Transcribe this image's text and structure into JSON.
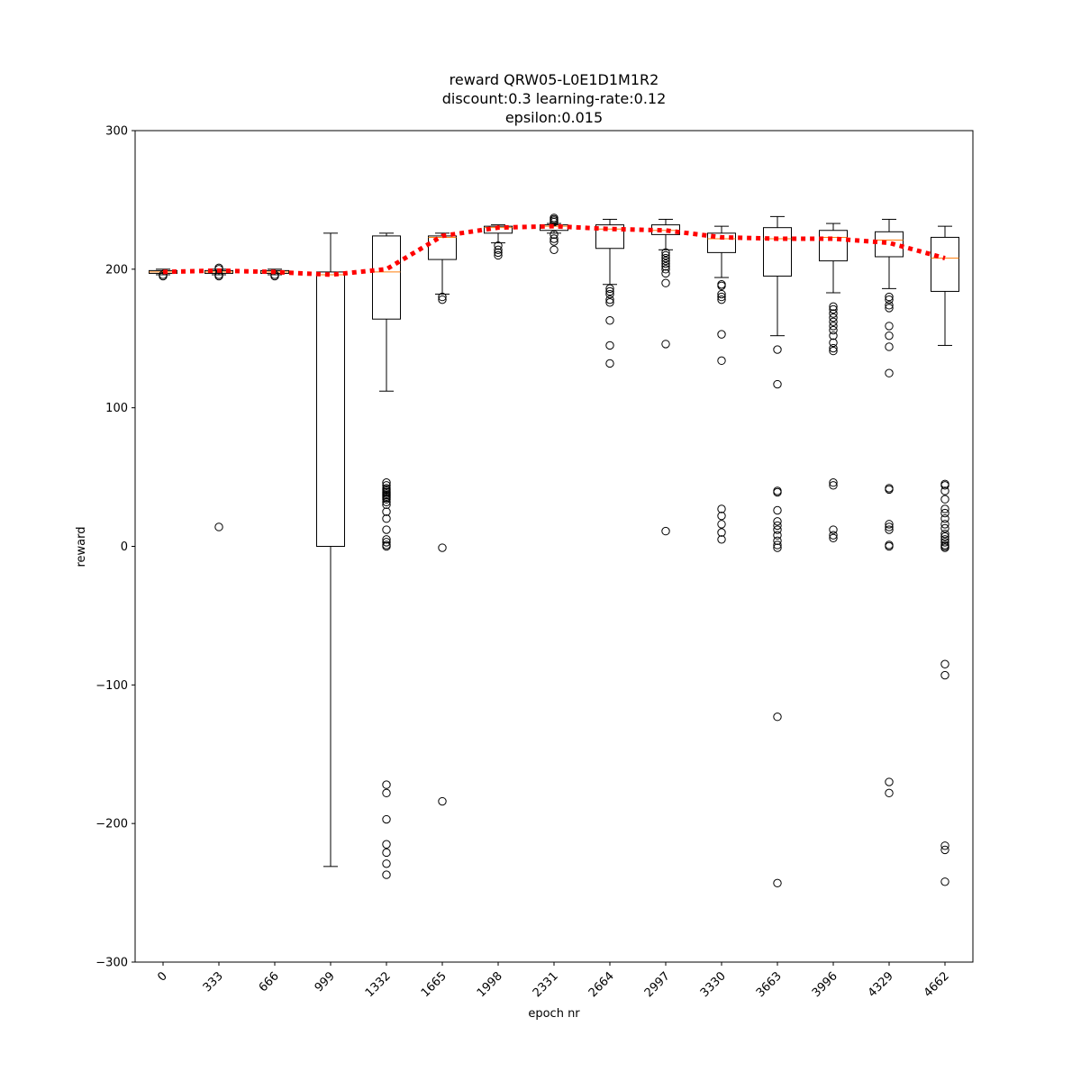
{
  "chart_data": {
    "type": "boxplot",
    "title_lines": [
      "reward QRW05-L0E1D1M1R2",
      "discount:0.3 learning-rate:0.12",
      "epsilon:0.015"
    ],
    "xlabel": "epoch nr",
    "ylabel": "reward",
    "ylim": [
      -300,
      300
    ],
    "yticks": [
      -300,
      -200,
      -100,
      0,
      100,
      200,
      300
    ],
    "ytick_labels": [
      "−300",
      "−200",
      "−100",
      "0",
      "100",
      "200",
      "300"
    ],
    "grid": false,
    "categories": [
      "0",
      "333",
      "666",
      "999",
      "1332",
      "1665",
      "1998",
      "2331",
      "2664",
      "2997",
      "3330",
      "3663",
      "3996",
      "4329",
      "4662"
    ],
    "boxes": [
      {
        "q1": 197,
        "median": 198,
        "q3": 199,
        "whislo": 196,
        "whishi": 200,
        "fliers": [
          195,
          196
        ]
      },
      {
        "q1": 197,
        "median": 198,
        "q3": 199,
        "whislo": 196,
        "whishi": 200,
        "fliers": [
          195,
          196,
          200,
          201,
          14
        ]
      },
      {
        "q1": 197,
        "median": 198,
        "q3": 199,
        "whislo": 196,
        "whishi": 200,
        "fliers": [
          195,
          196
        ]
      },
      {
        "q1": 0,
        "median": 196,
        "q3": 198,
        "whislo": -231,
        "whishi": 226,
        "fliers": []
      },
      {
        "q1": 164,
        "median": 198,
        "q3": 224,
        "whislo": 112,
        "whishi": 226,
        "fliers": [
          46,
          44,
          42,
          41,
          40,
          39,
          38,
          37,
          36,
          35,
          34,
          32,
          30,
          25,
          20,
          12,
          5,
          3,
          1,
          0,
          -172,
          -178,
          -197,
          -215,
          -221,
          -229,
          -237
        ]
      },
      {
        "q1": 207,
        "median": 223,
        "q3": 224,
        "whislo": 182,
        "whishi": 226,
        "fliers": [
          180,
          178,
          -1,
          -184
        ]
      },
      {
        "q1": 226,
        "median": 230,
        "q3": 231,
        "whislo": 219,
        "whishi": 232,
        "fliers": [
          217,
          214,
          212,
          210
        ]
      },
      {
        "q1": 228,
        "median": 231,
        "q3": 232,
        "whislo": 226,
        "whishi": 233,
        "fliers": [
          237,
          236,
          235,
          234,
          225,
          222,
          220,
          214
        ]
      },
      {
        "q1": 215,
        "median": 229,
        "q3": 232,
        "whislo": 189,
        "whishi": 236,
        "fliers": [
          186,
          184,
          182,
          178,
          176,
          163,
          145,
          132
        ]
      },
      {
        "q1": 225,
        "median": 228,
        "q3": 232,
        "whislo": 214,
        "whishi": 236,
        "fliers": [
          212,
          210,
          208,
          206,
          204,
          202,
          200,
          197,
          190,
          146,
          11
        ]
      },
      {
        "q1": 212,
        "median": 222,
        "q3": 226,
        "whislo": 194,
        "whishi": 231,
        "fliers": [
          189,
          188,
          182,
          180,
          178,
          153,
          134,
          27,
          22,
          16,
          10,
          5
        ]
      },
      {
        "q1": 195,
        "median": 222,
        "q3": 230,
        "whislo": 152,
        "whishi": 238,
        "fliers": [
          142,
          117,
          40,
          39,
          26,
          18,
          15,
          12,
          8,
          4,
          1,
          -1,
          -123,
          -243
        ]
      },
      {
        "q1": 206,
        "median": 223,
        "q3": 228,
        "whislo": 183,
        "whishi": 233,
        "fliers": [
          173,
          171,
          168,
          165,
          162,
          159,
          156,
          152,
          147,
          143,
          141,
          46,
          44,
          12,
          8,
          6
        ]
      },
      {
        "q1": 209,
        "median": 221,
        "q3": 227,
        "whislo": 186,
        "whishi": 236,
        "fliers": [
          180,
          178,
          174,
          172,
          159,
          152,
          144,
          125,
          42,
          41,
          16,
          14,
          12,
          1,
          0,
          -170,
          -178
        ]
      },
      {
        "q1": 184,
        "median": 208,
        "q3": 223,
        "whislo": 145,
        "whishi": 231,
        "fliers": [
          45,
          44,
          40,
          34,
          27,
          24,
          20,
          16,
          13,
          9,
          7,
          5,
          3,
          1,
          0,
          -1,
          -85,
          -93,
          -216,
          -219,
          -242
        ]
      }
    ],
    "mean_line": {
      "name": "mean",
      "style": "dotted",
      "values": [
        198,
        199,
        198,
        196,
        200,
        224,
        230,
        231,
        229,
        228,
        223,
        222,
        222,
        219,
        208
      ]
    },
    "colors": {
      "box": "#000000",
      "median": "#ff7f0e",
      "mean_line": "#ff0000",
      "flier": "#000000"
    }
  }
}
